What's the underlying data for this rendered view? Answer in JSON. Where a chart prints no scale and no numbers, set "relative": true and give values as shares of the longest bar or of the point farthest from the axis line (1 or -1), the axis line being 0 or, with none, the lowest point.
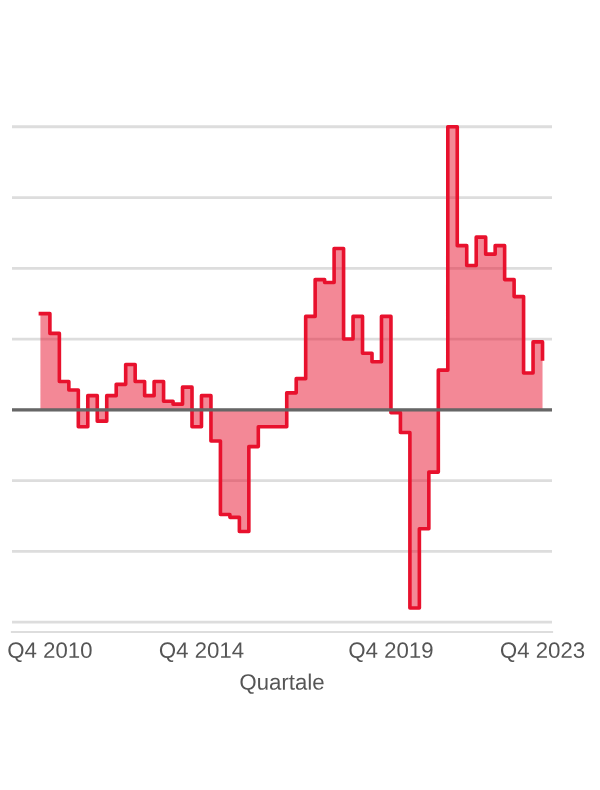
{
  "chart_data": {
    "type": "step",
    "relative": true,
    "xlabel": "Quartale",
    "grid": "y",
    "categories": [
      null,
      "Q4 2010",
      null,
      null,
      null,
      null,
      null,
      null,
      null,
      null,
      null,
      null,
      null,
      null,
      null,
      null,
      null,
      "Q4 2014",
      null,
      null,
      null,
      null,
      null,
      null,
      null,
      null,
      null,
      null,
      null,
      null,
      null,
      null,
      null,
      null,
      null,
      null,
      null,
      "Q4 2019",
      null,
      null,
      null,
      null,
      null,
      null,
      null,
      null,
      null,
      null,
      null,
      null,
      null,
      null,
      null,
      "Q4 2023"
    ],
    "series": [
      {
        "color": "#e8112d",
        "values": [
          0.34,
          0.27,
          0.1,
          0.07,
          -0.06,
          0.05,
          -0.04,
          0.05,
          0.09,
          0.16,
          0.1,
          0.05,
          0.1,
          0.03,
          0.02,
          0.08,
          -0.06,
          0.05,
          -0.11,
          -0.37,
          -0.38,
          -0.43,
          -0.13,
          -0.06,
          -0.06,
          -0.06,
          0.06,
          0.11,
          0.33,
          0.46,
          0.45,
          0.57,
          0.25,
          0.33,
          0.2,
          0.17,
          0.33,
          -0.01,
          -0.08,
          -0.7,
          -0.42,
          -0.22,
          0.14,
          1,
          0.58,
          0.51,
          0.61,
          0.55,
          0.58,
          0.46,
          0.4,
          0.13,
          0.24,
          0.18
        ]
      }
    ]
  }
}
